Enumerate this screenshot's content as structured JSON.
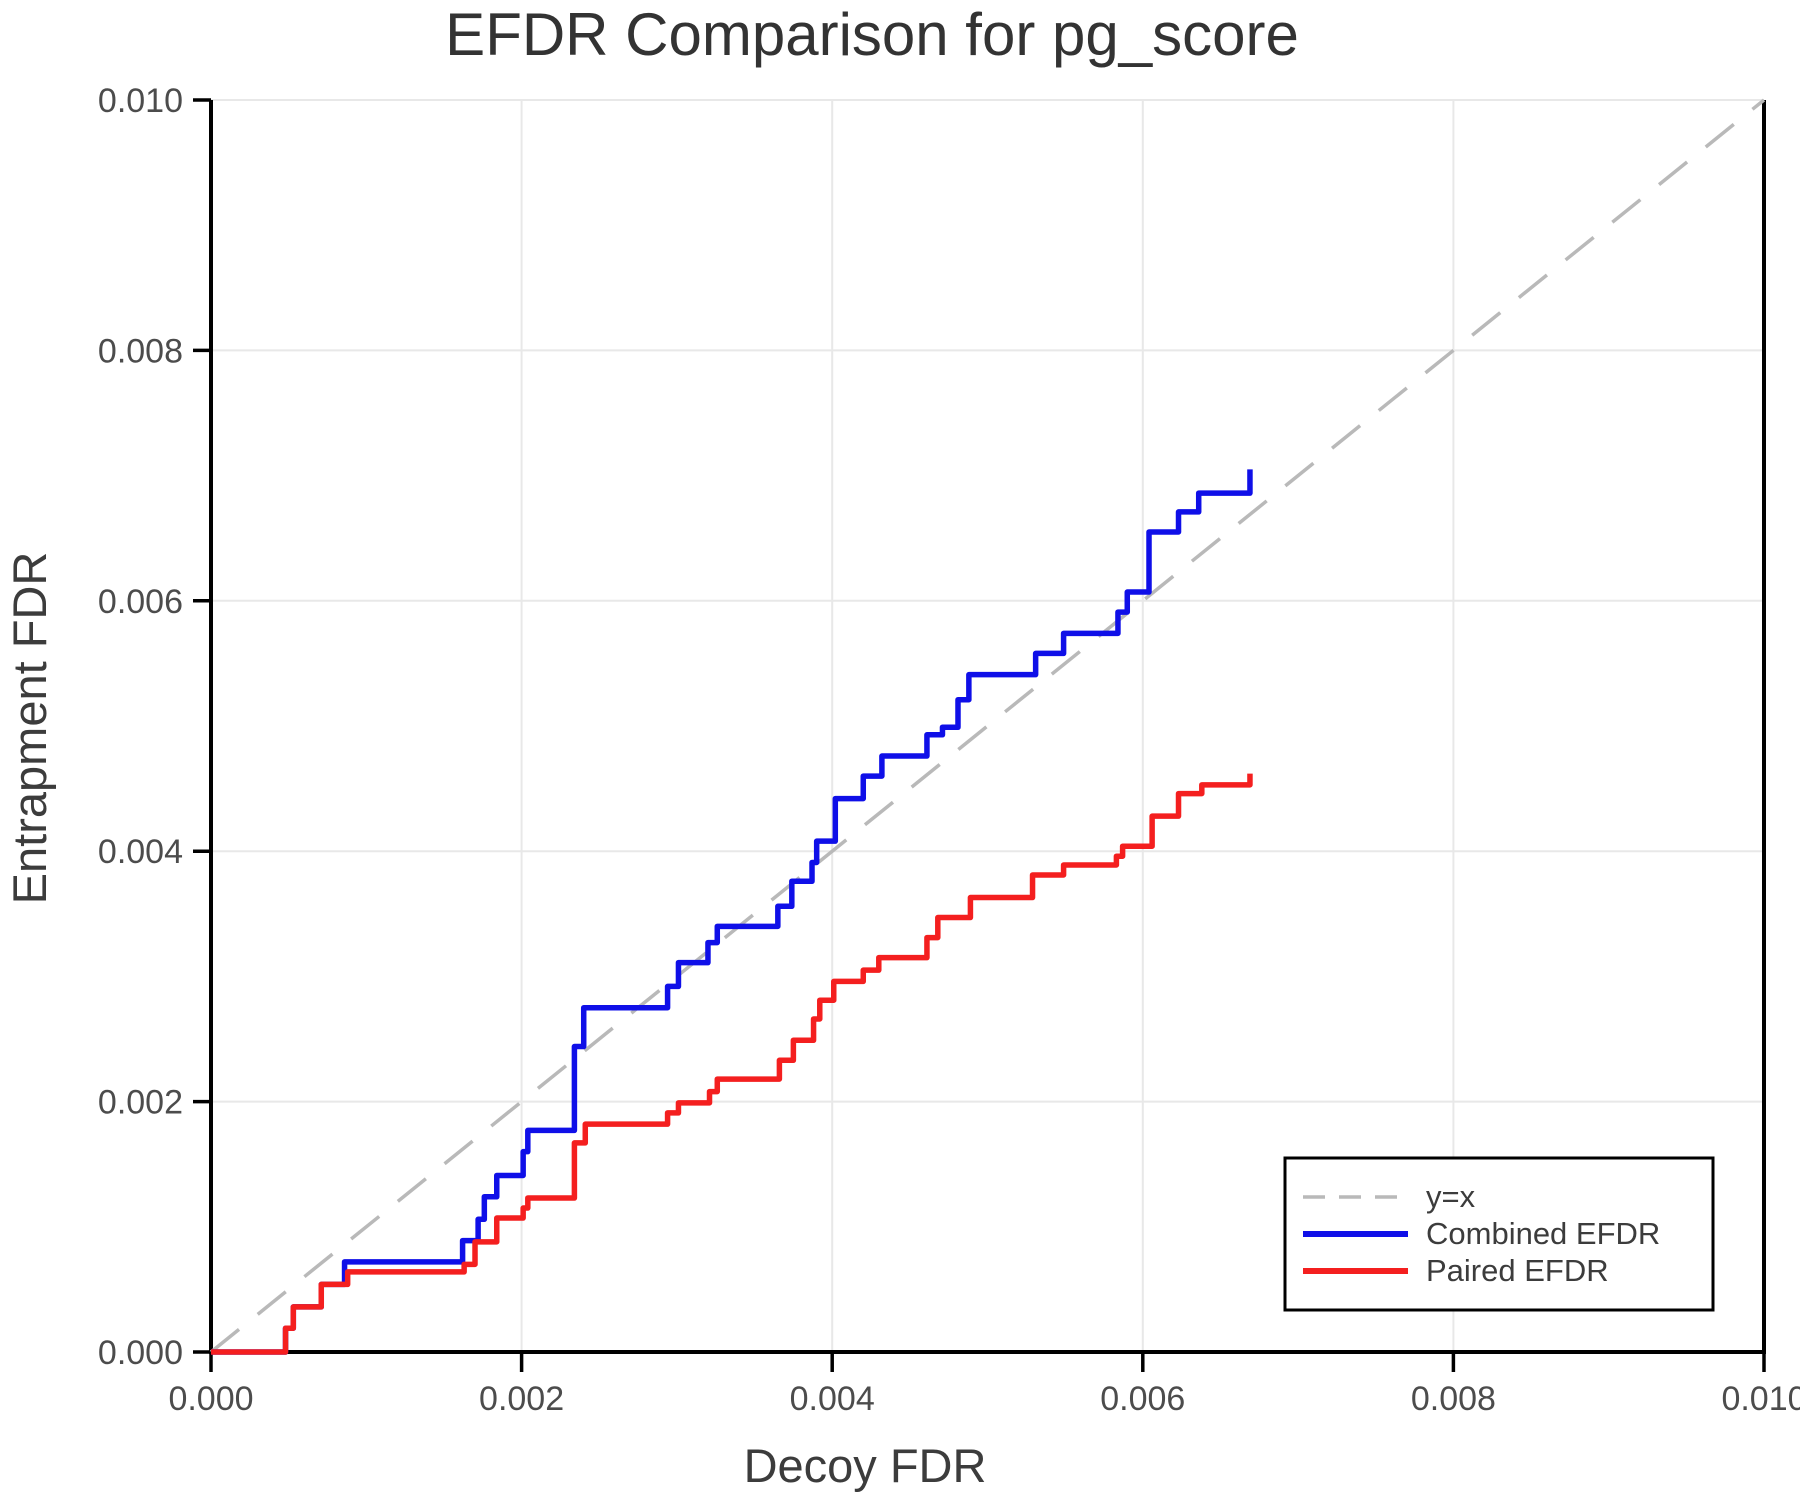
{
  "chart_data": {
    "type": "line",
    "title": "EFDR Comparison for pg_score",
    "xlabel": "Decoy FDR",
    "ylabel": "Entrapment FDR",
    "xlim": [
      0.0,
      0.01
    ],
    "ylim": [
      0.0,
      0.01
    ],
    "grid": true,
    "legend_position": "lower right",
    "x_tick_labels": [
      "0.000",
      "0.002",
      "0.004",
      "0.006",
      "0.008",
      "0.010"
    ],
    "y_tick_labels": [
      "0.000",
      "0.002",
      "0.004",
      "0.006",
      "0.008",
      "0.010"
    ],
    "colors": {
      "grid": "#e8e8e8",
      "spine": "#000000",
      "tick_text": "#4c4c4c",
      "title_text": "#333333"
    },
    "series": [
      {
        "name": "y=x",
        "style": "dashed",
        "draw": "line",
        "color": "#b9b9b9",
        "points": [
          [
            0.0,
            0.0
          ],
          [
            0.01,
            0.01
          ]
        ]
      },
      {
        "name": "Combined EFDR",
        "style": "solid",
        "draw": "step",
        "color": "#0f0fe8",
        "points": [
          [
            0.0,
            0.0
          ],
          [
            0.00048,
            0.00019
          ],
          [
            0.00053,
            0.00036
          ],
          [
            0.00071,
            0.00054
          ],
          [
            0.00086,
            0.00072
          ],
          [
            0.00162,
            0.00089
          ],
          [
            0.00172,
            0.00106
          ],
          [
            0.00176,
            0.00124
          ],
          [
            0.00184,
            0.00141
          ],
          [
            0.00201,
            0.0016
          ],
          [
            0.00204,
            0.00177
          ],
          [
            0.00234,
            0.00244
          ],
          [
            0.0024,
            0.00275
          ],
          [
            0.00294,
            0.00292
          ],
          [
            0.00301,
            0.00311
          ],
          [
            0.0032,
            0.00327
          ],
          [
            0.00326,
            0.0034
          ],
          [
            0.00365,
            0.00356
          ],
          [
            0.00374,
            0.00376
          ],
          [
            0.00387,
            0.00391
          ],
          [
            0.0039,
            0.00408
          ],
          [
            0.00402,
            0.00442
          ],
          [
            0.0042,
            0.0046
          ],
          [
            0.00432,
            0.00476
          ],
          [
            0.00461,
            0.00493
          ],
          [
            0.00471,
            0.00499
          ],
          [
            0.00481,
            0.00521
          ],
          [
            0.00488,
            0.00541
          ],
          [
            0.00531,
            0.00558
          ],
          [
            0.00549,
            0.00574
          ],
          [
            0.00584,
            0.00591
          ],
          [
            0.0059,
            0.00607
          ],
          [
            0.00604,
            0.00655
          ],
          [
            0.00623,
            0.00671
          ],
          [
            0.00636,
            0.00686
          ],
          [
            0.00669,
            0.00705
          ]
        ]
      },
      {
        "name": "Paired EFDR",
        "style": "solid",
        "draw": "step",
        "color": "#f41f1f",
        "points": [
          [
            0.0,
            0.0
          ],
          [
            0.00048,
            0.00019
          ],
          [
            0.00053,
            0.00036
          ],
          [
            0.00071,
            0.00054
          ],
          [
            0.00088,
            0.00064
          ],
          [
            0.00163,
            0.0007
          ],
          [
            0.0017,
            0.00088
          ],
          [
            0.00184,
            0.00107
          ],
          [
            0.00201,
            0.00115
          ],
          [
            0.00204,
            0.00123
          ],
          [
            0.00234,
            0.00167
          ],
          [
            0.00241,
            0.00182
          ],
          [
            0.00294,
            0.00191
          ],
          [
            0.00301,
            0.00199
          ],
          [
            0.00321,
            0.00208
          ],
          [
            0.00326,
            0.00218
          ],
          [
            0.00366,
            0.00233
          ],
          [
            0.00375,
            0.00249
          ],
          [
            0.00388,
            0.00266
          ],
          [
            0.00392,
            0.00281
          ],
          [
            0.00401,
            0.00296
          ],
          [
            0.0042,
            0.00305
          ],
          [
            0.0043,
            0.00315
          ],
          [
            0.00461,
            0.00331
          ],
          [
            0.00468,
            0.00347
          ],
          [
            0.00489,
            0.00363
          ],
          [
            0.00529,
            0.00381
          ],
          [
            0.00549,
            0.00389
          ],
          [
            0.00583,
            0.00396
          ],
          [
            0.00587,
            0.00404
          ],
          [
            0.00606,
            0.00428
          ],
          [
            0.00623,
            0.00446
          ],
          [
            0.00638,
            0.00453
          ],
          [
            0.00669,
            0.00462
          ]
        ]
      }
    ]
  }
}
